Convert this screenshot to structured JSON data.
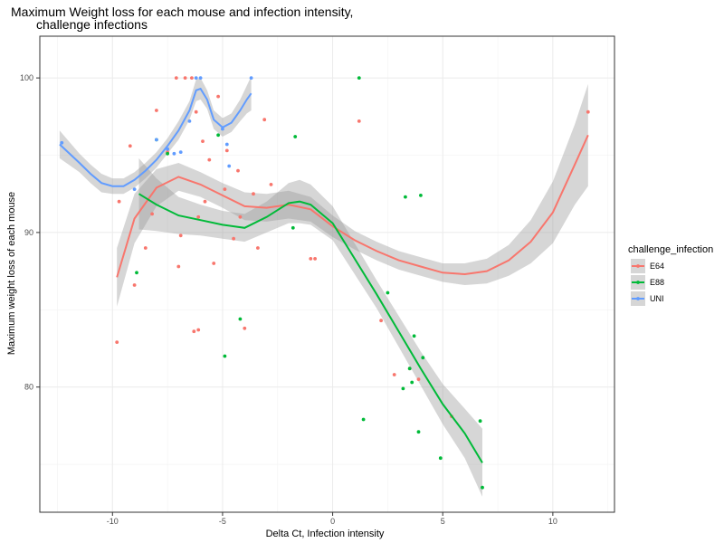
{
  "chart_data": {
    "type": "scatter",
    "title": [
      "Maximum Weight loss for each mouse and infection intensity,",
      "challenge infections"
    ],
    "xlabel": "Delta Ct, Infection intensity",
    "ylabel": "Maximum weight loss of each mouse",
    "xlim": [
      -13.3,
      12.8
    ],
    "ylim": [
      71.9,
      102.7
    ],
    "xticks": [
      -10,
      -5,
      0,
      5,
      10
    ],
    "yticks": [
      80,
      90,
      100
    ],
    "grid": true,
    "legend": {
      "title": "challenge_infection",
      "placement": "right",
      "entries": [
        {
          "name": "E64",
          "color": "#F8766D"
        },
        {
          "name": "E88",
          "color": "#00BA38"
        },
        {
          "name": "UNI",
          "color": "#619CFF"
        }
      ]
    },
    "series": [
      {
        "name": "E64",
        "color": "#F8766D",
        "points": [
          [
            -9.8,
            82.9
          ],
          [
            -9.7,
            92.0
          ],
          [
            -9.2,
            95.6
          ],
          [
            -9.0,
            86.6
          ],
          [
            -8.5,
            89.0
          ],
          [
            -8.2,
            91.2
          ],
          [
            -8.0,
            97.9
          ],
          [
            -7.5,
            95.2
          ],
          [
            -7.1,
            100.0
          ],
          [
            -7.0,
            87.8
          ],
          [
            -6.9,
            89.8
          ],
          [
            -6.7,
            100.0
          ],
          [
            -6.4,
            100.0
          ],
          [
            -6.3,
            83.6
          ],
          [
            -6.2,
            97.8
          ],
          [
            -6.1,
            83.7
          ],
          [
            -6.1,
            91.0
          ],
          [
            -5.9,
            95.9
          ],
          [
            -5.8,
            92.0
          ],
          [
            -5.6,
            94.7
          ],
          [
            -5.4,
            88.0
          ],
          [
            -5.2,
            98.8
          ],
          [
            -4.9,
            92.8
          ],
          [
            -4.8,
            95.3
          ],
          [
            -4.5,
            89.6
          ],
          [
            -4.3,
            94.0
          ],
          [
            -4.2,
            91.0
          ],
          [
            -4.0,
            83.8
          ],
          [
            -3.6,
            92.5
          ],
          [
            -3.4,
            89.0
          ],
          [
            -3.1,
            97.3
          ],
          [
            -2.8,
            93.1
          ],
          [
            -1.0,
            88.3
          ],
          [
            -0.8,
            88.3
          ],
          [
            1.2,
            97.2
          ],
          [
            2.2,
            84.3
          ],
          [
            2.8,
            80.8
          ],
          [
            3.5,
            81.2
          ],
          [
            3.9,
            80.5
          ],
          [
            5.4,
            78.1
          ],
          [
            11.6,
            97.8
          ]
        ],
        "smooth": {
          "x": [
            -9.8,
            -9.0,
            -8.0,
            -7.0,
            -6.0,
            -5.0,
            -4.0,
            -3.0,
            -2.0,
            -1.0,
            0.0,
            1.0,
            2.0,
            3.0,
            4.0,
            5.0,
            6.0,
            7.0,
            8.0,
            9.0,
            10.0,
            11.0,
            11.6
          ],
          "y": [
            87.1,
            90.9,
            92.9,
            93.6,
            93.1,
            92.4,
            91.7,
            91.6,
            91.8,
            91.5,
            90.4,
            89.5,
            88.8,
            88.2,
            87.8,
            87.4,
            87.3,
            87.5,
            88.2,
            89.4,
            91.3,
            94.4,
            96.3
          ],
          "ribbon_halfwidth": [
            1.9,
            1.6,
            1.2,
            0.9,
            0.8,
            0.8,
            0.9,
            0.9,
            0.9,
            0.8,
            0.7,
            0.6,
            0.6,
            0.6,
            0.6,
            0.6,
            0.7,
            0.8,
            1.0,
            1.4,
            2.0,
            2.6,
            3.3
          ]
        }
      },
      {
        "name": "E88",
        "color": "#00BA38",
        "points": [
          [
            -8.9,
            87.4
          ],
          [
            -8.0,
            96.0
          ],
          [
            -7.5,
            95.1
          ],
          [
            -5.2,
            96.3
          ],
          [
            -4.9,
            82.0
          ],
          [
            -4.2,
            84.4
          ],
          [
            -1.8,
            90.3
          ],
          [
            -1.7,
            96.2
          ],
          [
            1.2,
            100.0
          ],
          [
            2.5,
            86.1
          ],
          [
            3.2,
            79.9
          ],
          [
            3.3,
            92.3
          ],
          [
            3.5,
            81.2
          ],
          [
            3.6,
            80.3
          ],
          [
            3.7,
            83.3
          ],
          [
            3.9,
            77.1
          ],
          [
            4.0,
            92.4
          ],
          [
            4.1,
            81.9
          ],
          [
            4.9,
            75.4
          ],
          [
            6.7,
            77.8
          ],
          [
            6.8,
            73.5
          ],
          [
            1.4,
            77.9
          ]
        ],
        "smooth": {
          "x": [
            -8.8,
            -8.0,
            -7.0,
            -6.0,
            -5.0,
            -4.0,
            -3.0,
            -2.0,
            -1.5,
            -1.0,
            0.0,
            1.0,
            2.0,
            3.0,
            4.0,
            5.0,
            6.0,
            6.8
          ],
          "y": [
            92.5,
            91.8,
            91.1,
            90.8,
            90.5,
            90.3,
            91.0,
            91.9,
            92.0,
            91.8,
            90.6,
            88.3,
            86.0,
            83.6,
            81.2,
            78.9,
            77.0,
            75.1
          ],
          "ribbon_halfwidth": [
            2.3,
            1.7,
            1.2,
            1.0,
            0.9,
            0.9,
            1.0,
            1.3,
            1.4,
            1.3,
            1.1,
            1.0,
            0.9,
            1.0,
            1.1,
            1.3,
            1.6,
            2.2
          ]
        }
      },
      {
        "name": "UNI",
        "color": "#619CFF",
        "points": [
          [
            -12.3,
            95.8
          ],
          [
            -9.0,
            92.8
          ],
          [
            -8.0,
            96.0
          ],
          [
            -7.5,
            95.4
          ],
          [
            -7.2,
            95.1
          ],
          [
            -6.9,
            95.2
          ],
          [
            -6.5,
            97.2
          ],
          [
            -6.2,
            100.0
          ],
          [
            -6.0,
            100.0
          ],
          [
            -5.0,
            96.7
          ],
          [
            -4.8,
            95.7
          ],
          [
            -4.7,
            94.3
          ],
          [
            -3.7,
            100.0
          ]
        ],
        "smooth": {
          "x": [
            -12.4,
            -11.5,
            -11.0,
            -10.5,
            -10.0,
            -9.5,
            -9.0,
            -8.5,
            -8.0,
            -7.5,
            -7.0,
            -6.5,
            -6.2,
            -6.0,
            -5.7,
            -5.4,
            -5.0,
            -4.6,
            -4.2,
            -3.9,
            -3.7
          ],
          "y": [
            95.7,
            94.5,
            93.8,
            93.2,
            93.0,
            93.0,
            93.4,
            94.0,
            94.7,
            95.6,
            96.6,
            97.9,
            99.2,
            99.3,
            98.6,
            97.3,
            96.8,
            97.1,
            97.9,
            98.6,
            99.0
          ],
          "ribbon_halfwidth": [
            0.9,
            0.6,
            0.6,
            0.6,
            0.5,
            0.5,
            0.5,
            0.5,
            0.5,
            0.5,
            0.6,
            0.6,
            0.7,
            0.7,
            0.6,
            0.6,
            0.6,
            0.6,
            0.7,
            0.9,
            1.1
          ]
        }
      }
    ]
  }
}
